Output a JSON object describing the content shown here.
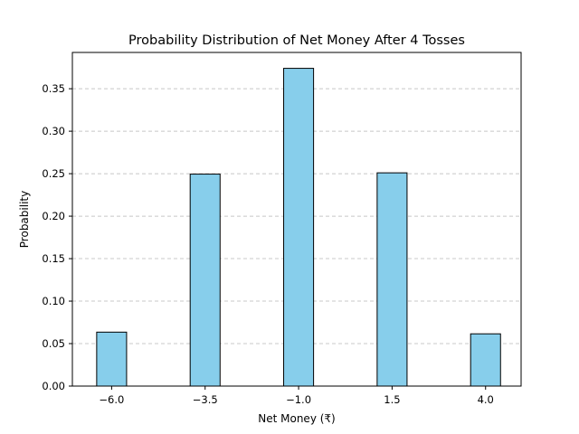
{
  "chart_data": {
    "type": "bar",
    "title": "Probability Distribution of Net Money After 4 Tosses",
    "xlabel": "Net Money (₹)",
    "ylabel": "Probability",
    "categories": [
      "−6.0",
      "−3.5",
      "−1.0",
      "1.5",
      "4.0"
    ],
    "x": [
      -6.0,
      -3.5,
      -1.0,
      1.5,
      4.0
    ],
    "values": [
      0.0635,
      0.2495,
      0.374,
      0.251,
      0.0615
    ],
    "xlim": [
      -7.05,
      4.95
    ],
    "ylim": [
      0,
      0.3927
    ],
    "yticks": [
      0.0,
      0.05,
      0.1,
      0.15,
      0.2,
      0.25,
      0.3,
      0.35
    ],
    "ytick_labels": [
      "0.00",
      "0.05",
      "0.10",
      "0.15",
      "0.20",
      "0.25",
      "0.30",
      "0.35"
    ],
    "grid": "y-dashed",
    "bar_color": "#87CEEB",
    "edge_color": "#000000",
    "grid_color": "#c8c8c8"
  }
}
